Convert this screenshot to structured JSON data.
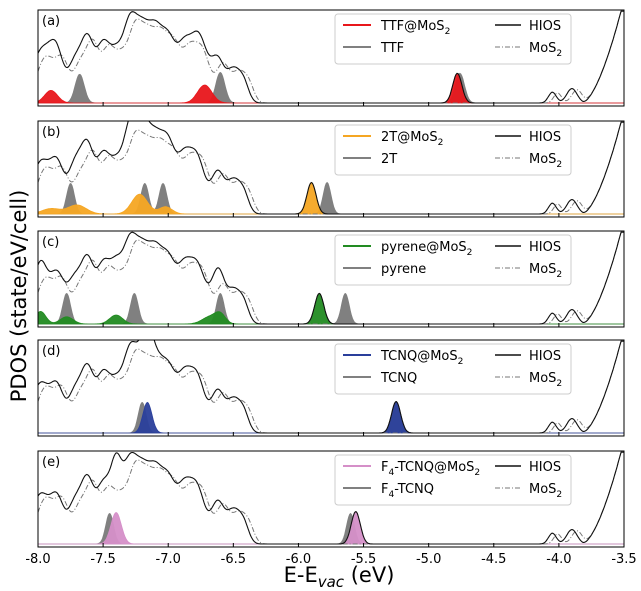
{
  "chart_data": {
    "type": "line",
    "ylabel": "PDOS (state/eV/cell)",
    "xlabel": "E-E",
    "xlabel_sub": "vac",
    "xlabel_unit": " (eV)",
    "xlim": [
      -8.0,
      -3.5
    ],
    "x_ticks": [
      "-8.0",
      "-7.5",
      "-7.0",
      "-6.5",
      "-6.0",
      "-5.5",
      "-5.0",
      "-4.5",
      "-4.0",
      "-3.5"
    ],
    "x_tick_values": [
      -8.0,
      -7.5,
      -7.0,
      -6.5,
      -6.0,
      -5.5,
      -5.0,
      -4.5,
      -4.0,
      -3.5
    ],
    "hios_background": {
      "peaks": [
        [
          -7.98,
          0.55,
          0.07
        ],
        [
          -7.85,
          0.45,
          0.05
        ],
        [
          -7.72,
          0.42,
          0.05
        ],
        [
          -7.62,
          0.68,
          0.05
        ],
        [
          -7.5,
          0.6,
          0.05
        ],
        [
          -7.4,
          0.48,
          0.05
        ],
        [
          -7.3,
          0.72,
          0.05
        ],
        [
          -7.2,
          0.78,
          0.06
        ],
        [
          -7.1,
          0.55,
          0.05
        ],
        [
          -7.0,
          0.7,
          0.06
        ],
        [
          -6.88,
          0.48,
          0.05
        ],
        [
          -6.78,
          0.62,
          0.06
        ],
        [
          -6.62,
          0.45,
          0.05
        ],
        [
          -6.5,
          0.35,
          0.05
        ],
        [
          -6.42,
          0.2,
          0.04
        ],
        [
          -4.05,
          0.12,
          0.03
        ],
        [
          -3.9,
          0.16,
          0.04
        ]
      ],
      "rise_start": -3.82,
      "rise_end": -3.5,
      "mos2_shift": 0.04,
      "mos2_scale": 0.92
    },
    "panels": [
      {
        "label": "(a)",
        "molecule": "TTF",
        "color": "#e8161b",
        "series": [
          {
            "name": "TTF@MoS",
            "sub": "2",
            "role": "adsorbed",
            "peaks": [
              [
                -7.9,
                0.14,
                0.05
              ],
              [
                -6.72,
                0.2,
                0.055
              ],
              [
                -4.78,
                0.33,
                0.035
              ]
            ]
          },
          {
            "name": "TTF",
            "role": "isolated",
            "peaks": [
              [
                -7.68,
                0.32,
                0.035
              ],
              [
                -6.6,
                0.34,
                0.035
              ],
              [
                -4.76,
                0.33,
                0.035
              ]
            ]
          },
          {
            "name": "HIOS",
            "role": "hios"
          },
          {
            "name": "MoS",
            "sub": "2",
            "role": "mos2"
          }
        ]
      },
      {
        "label": "(b)",
        "molecule": "2T",
        "color": "#f5a623",
        "series": [
          {
            "name": "2T@MoS",
            "sub": "2",
            "role": "adsorbed",
            "peaks": [
              [
                -7.9,
                0.06,
                0.07
              ],
              [
                -7.7,
                0.1,
                0.07
              ],
              [
                -7.22,
                0.22,
                0.06
              ],
              [
                -7.02,
                0.08,
                0.05
              ],
              [
                -5.9,
                0.35,
                0.035
              ]
            ]
          },
          {
            "name": "2T",
            "role": "isolated",
            "peaks": [
              [
                -7.75,
                0.34,
                0.03
              ],
              [
                -7.18,
                0.34,
                0.03
              ],
              [
                -7.04,
                0.34,
                0.03
              ],
              [
                -5.78,
                0.35,
                0.03
              ]
            ]
          },
          {
            "name": "HIOS",
            "role": "hios"
          },
          {
            "name": "MoS",
            "sub": "2",
            "role": "mos2"
          }
        ]
      },
      {
        "label": "(c)",
        "molecule": "pyrene",
        "color": "#228b22",
        "series": [
          {
            "name": "pyrene@MoS",
            "sub": "2",
            "role": "adsorbed",
            "peaks": [
              [
                -7.98,
                0.14,
                0.04
              ],
              [
                -7.78,
                0.08,
                0.05
              ],
              [
                -7.4,
                0.1,
                0.05
              ],
              [
                -6.68,
                0.08,
                0.06
              ],
              [
                -6.6,
                0.1,
                0.04
              ],
              [
                -5.84,
                0.34,
                0.035
              ]
            ]
          },
          {
            "name": "pyrene",
            "role": "isolated",
            "peaks": [
              [
                -7.78,
                0.34,
                0.03
              ],
              [
                -7.26,
                0.34,
                0.03
              ],
              [
                -6.6,
                0.34,
                0.03
              ],
              [
                -5.64,
                0.34,
                0.03
              ]
            ]
          },
          {
            "name": "HIOS",
            "role": "hios"
          },
          {
            "name": "MoS",
            "sub": "2",
            "role": "mos2"
          }
        ]
      },
      {
        "label": "(d)",
        "molecule": "TCNQ",
        "color": "#2a3f9b",
        "series": [
          {
            "name": "TCNQ@MoS",
            "sub": "2",
            "role": "adsorbed",
            "peaks": [
              [
                -7.16,
                0.34,
                0.035
              ],
              [
                -5.25,
                0.35,
                0.035
              ]
            ]
          },
          {
            "name": "TCNQ",
            "role": "isolated",
            "peaks": [
              [
                -7.2,
                0.34,
                0.03
              ],
              [
                -5.25,
                0.34,
                0.03
              ]
            ]
          },
          {
            "name": "HIOS",
            "role": "hios"
          },
          {
            "name": "MoS",
            "sub": "2",
            "role": "mos2"
          }
        ]
      },
      {
        "label": "(e)",
        "molecule": "F4-TCNQ",
        "color": "#d58fc8",
        "series": [
          {
            "name": "F",
            "sub": "4",
            "suffix": "-TCNQ@MoS",
            "sub2": "2",
            "role": "adsorbed",
            "peaks": [
              [
                -7.4,
                0.35,
                0.04
              ],
              [
                -5.56,
                0.36,
                0.035
              ]
            ]
          },
          {
            "name": "F",
            "sub": "4",
            "suffix": "-TCNQ",
            "role": "isolated",
            "peaks": [
              [
                -7.45,
                0.34,
                0.03
              ],
              [
                -5.6,
                0.34,
                0.03
              ]
            ]
          },
          {
            "name": "HIOS",
            "role": "hios"
          },
          {
            "name": "MoS",
            "sub": "2",
            "role": "mos2"
          }
        ]
      }
    ]
  }
}
